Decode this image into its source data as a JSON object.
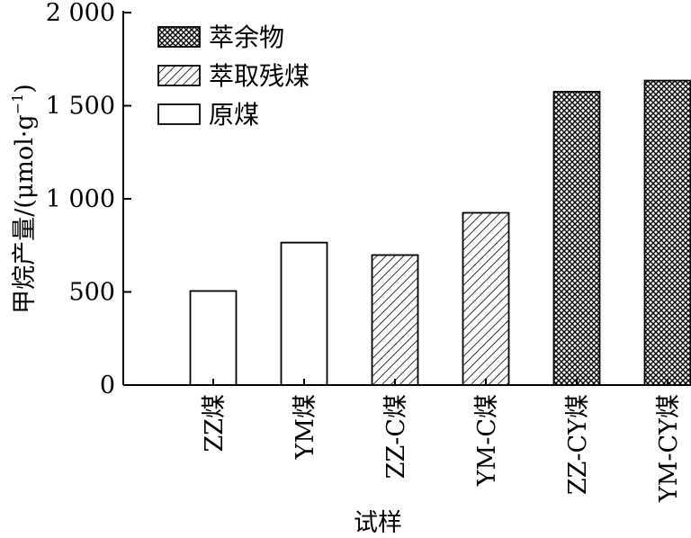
{
  "chart_data": {
    "type": "bar",
    "title": "",
    "xlabel": "试样",
    "ylabel": "甲烷产量/(μmol·g",
    "ylabel_sup": "−1",
    "ylabel_close": ")",
    "ylim": [
      0,
      2000
    ],
    "yticks": [
      0,
      500,
      1000,
      1500,
      2000
    ],
    "ytick_labels": [
      "0",
      "500",
      "1 000",
      "1 500",
      "2 000"
    ],
    "categories": [
      "ZZ煤",
      "YM煤",
      "ZZ-C煤",
      "YM-C煤",
      "ZZ-CY煤",
      "YM-CY煤"
    ],
    "values": [
      505,
      765,
      698,
      925,
      1575,
      1635
    ],
    "series_of_bar": [
      "原煤",
      "原煤",
      "萃取残煤",
      "萃取残煤",
      "萃余物",
      "萃余物"
    ],
    "legend": {
      "position": "top-left",
      "entries": [
        {
          "name": "萃余物",
          "pattern": "crosshatch"
        },
        {
          "name": "萃取残煤",
          "pattern": "diagonal"
        },
        {
          "name": "原煤",
          "pattern": "none"
        }
      ]
    },
    "grid": false
  }
}
